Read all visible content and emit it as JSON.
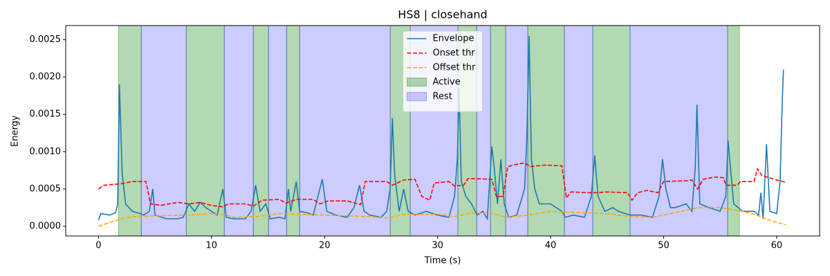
{
  "chart_data": {
    "type": "line",
    "title": "HS8 | closehand",
    "x_label": "Time (s)",
    "y_label": "Energy",
    "xlim": [
      -2.9,
      63.8
    ],
    "xticks": [
      0,
      10,
      20,
      30,
      40,
      50,
      60
    ],
    "ylim": [
      -0.00013,
      0.00269
    ],
    "yticks": [
      {
        "value": 0,
        "label": "0.0000"
      },
      {
        "value": 0.0005,
        "label": "0.0005"
      },
      {
        "value": 0.001,
        "label": "0.0010"
      },
      {
        "value": 0.0015,
        "label": "0.0015"
      },
      {
        "value": 0.002,
        "label": "0.0020"
      },
      {
        "value": 0.0025,
        "label": "0.0025"
      }
    ],
    "legend": "upper center",
    "spans": [
      {
        "name": "Active",
        "color": "#008000",
        "alpha": 0.3,
        "start": [
          1.77,
          7.77,
          13.7,
          16.64,
          25.81,
          31.8,
          34.68,
          37.98,
          43.73,
          55.66
        ],
        "end": [
          3.79,
          11.13,
          15.05,
          17.8,
          27.58,
          33.46,
          36.02,
          41.22,
          47.03,
          56.7
        ]
      },
      {
        "name": "Rest",
        "color": "#0000ff",
        "alpha": 0.2,
        "start": [
          3.79,
          11.13,
          15.05,
          17.8,
          27.58,
          33.46,
          36.02,
          41.22,
          47.03
        ],
        "end": [
          7.77,
          13.7,
          16.64,
          25.81,
          31.8,
          34.68,
          37.98,
          43.73,
          55.66
        ]
      }
    ],
    "series": [
      {
        "name": "Envelope",
        "color": "#1f77b4",
        "dash": "solid",
        "x": [
          0,
          0.2,
          1,
          1.5,
          1.7,
          1.85,
          2.1,
          2.4,
          3,
          3.5,
          4,
          4.5,
          4.8,
          5,
          6,
          7,
          7.5,
          8,
          8.5,
          9,
          9.5,
          10,
          10.5,
          11,
          11.3,
          12,
          13,
          13.5,
          13.9,
          14.3,
          14.8,
          15.2,
          16,
          16.5,
          16.8,
          17,
          17.5,
          17.8,
          18.5,
          19,
          19.8,
          20.2,
          21,
          22,
          22.6,
          23.1,
          23.5,
          24,
          25,
          25.5,
          25.8,
          26,
          26.2,
          26.6,
          27,
          27.4,
          28,
          29,
          30,
          31,
          31.5,
          31.75,
          31.9,
          32.1,
          32.5,
          33,
          33.5,
          34,
          34.4,
          34.8,
          35,
          35.3,
          35.6,
          35.9,
          36.3,
          37,
          37.7,
          37.9,
          38.1,
          38.3,
          38.6,
          39,
          40,
          40.5,
          41,
          41.3,
          42,
          43,
          43.6,
          43.9,
          44.2,
          44.8,
          45.5,
          46,
          47,
          48,
          49,
          49.6,
          49.9,
          50.2,
          50.6,
          51,
          52,
          52.5,
          52.8,
          52.95,
          53.2,
          54,
          55,
          55.5,
          55.7,
          55.9,
          56.2,
          57,
          58,
          58.4,
          58.6,
          58.8,
          59.1,
          59.4,
          60,
          60.3,
          60.5,
          60.6
        ],
        "values": [
          8e-05,
          0.00017,
          0.00015,
          0.00018,
          0.0003,
          0.0019,
          0.0007,
          0.0003,
          0.0002,
          0.00018,
          0.00015,
          0.0002,
          0.0005,
          0.00015,
          0.0001,
          0.0001,
          0.00012,
          0.0003,
          0.0002,
          0.00032,
          0.00025,
          0.0002,
          0.00015,
          0.0005,
          0.00012,
          0.0001,
          0.0001,
          0.0002,
          0.00055,
          0.0002,
          0.0003,
          0.0001,
          0.00012,
          0.0001,
          0.0005,
          0.0002,
          0.0006,
          0.0002,
          0.00018,
          0.00015,
          0.00063,
          0.0002,
          0.00015,
          0.00012,
          0.00025,
          0.00055,
          0.0002,
          0.00015,
          0.00012,
          0.0002,
          0.0005,
          0.00145,
          0.0007,
          0.0002,
          0.0005,
          0.0002,
          0.00015,
          0.0002,
          0.00015,
          0.00012,
          0.0004,
          0.0009,
          0.00185,
          0.0006,
          0.0004,
          0.0003,
          0.00015,
          0.0002,
          0.0001,
          0.00107,
          0.0008,
          0.0003,
          0.0009,
          0.0003,
          0.00012,
          0.00015,
          0.0005,
          0.0012,
          0.00255,
          0.0009,
          0.0005,
          0.0003,
          0.0003,
          0.00025,
          0.0002,
          0.00012,
          0.00015,
          0.00012,
          0.0004,
          0.00095,
          0.0004,
          0.0002,
          0.00025,
          0.0002,
          0.00015,
          0.00015,
          0.00012,
          0.0004,
          0.0009,
          0.0005,
          0.00025,
          0.00025,
          0.0003,
          0.0002,
          0.0008,
          0.00163,
          0.0003,
          0.00025,
          0.0002,
          0.0004,
          0.00115,
          0.0008,
          0.0003,
          0.0002,
          0.0002,
          0.00015,
          0.00045,
          0.0001,
          0.0011,
          0.0002,
          0.00017,
          0.0006,
          0.0017,
          0.0021
        ]
      },
      {
        "name": "Onset thr",
        "color": "#ff0000",
        "dash": "dashed",
        "x": [
          0,
          0.5,
          2,
          3,
          4.2,
          4.6,
          5.5,
          7,
          8,
          9,
          10,
          11,
          11.5,
          13,
          13.7,
          14.5,
          16,
          16.6,
          17.5,
          19,
          19.6,
          20.3,
          22,
          23.2,
          23.6,
          25.5,
          26,
          27,
          28,
          28.6,
          29.3,
          29.7,
          31,
          31.5,
          32.3,
          32.7,
          34.8,
          35.2,
          35.8,
          36.2,
          37,
          37.7,
          38.2,
          39.5,
          41,
          41.4,
          41.8,
          43.5,
          44,
          45,
          46.8,
          47.2,
          47.7,
          48.5,
          49.5,
          50,
          52,
          52.5,
          53,
          53.5,
          54.5,
          55.3,
          55.5,
          56.5,
          56.8,
          58,
          58.3,
          58.7,
          60,
          60.8
        ],
        "values": [
          0.0005,
          0.00055,
          0.00057,
          0.0006,
          0.0006,
          0.0003,
          0.00028,
          0.00032,
          0.0003,
          0.00032,
          0.00028,
          0.00026,
          0.0003,
          0.0003,
          0.00027,
          0.00035,
          0.00036,
          0.00031,
          0.00036,
          0.00036,
          0.0003,
          0.00034,
          0.00034,
          0.00029,
          0.0006,
          0.0006,
          0.00055,
          0.00062,
          0.00063,
          0.0004,
          0.00035,
          0.00058,
          0.0006,
          0.00054,
          0.00055,
          0.00064,
          0.00063,
          0.0004,
          0.0004,
          0.0008,
          0.00083,
          0.00085,
          0.0008,
          0.00082,
          0.00081,
          0.00038,
          0.00046,
          0.00045,
          0.00045,
          0.00046,
          0.00045,
          0.00035,
          0.00045,
          0.00048,
          0.00045,
          0.0006,
          0.00061,
          0.00062,
          0.0005,
          0.00063,
          0.00066,
          0.00065,
          0.00055,
          0.00055,
          0.0006,
          0.0006,
          0.00077,
          0.00068,
          0.00062,
          0.00059
        ]
      },
      {
        "name": "Offset thr",
        "color": "#ffa500",
        "dash": "dashed",
        "x": [
          0,
          1,
          2,
          3,
          5,
          8,
          10,
          11,
          12,
          14,
          16,
          18,
          20,
          24,
          25.7,
          27,
          30,
          31.5,
          33,
          35,
          36,
          38,
          40,
          41.5,
          43,
          45,
          47,
          49,
          51,
          53,
          55,
          57,
          58,
          60,
          60.8
        ],
        "values": [
          0,
          5e-05,
          0.0001,
          0.00013,
          0.00014,
          0.00015,
          0.00017,
          0.00016,
          0.00012,
          0.00013,
          0.00017,
          0.00016,
          0.00015,
          0.00013,
          0.00011,
          0.00016,
          0.00016,
          0.00013,
          0.00018,
          0.00017,
          0.00012,
          0.00015,
          0.0002,
          0.00019,
          0.00018,
          0.00017,
          0.00013,
          0.00012,
          0.00018,
          0.00025,
          0.00025,
          0.0002,
          0.00016,
          5e-05,
          2e-05
        ]
      }
    ]
  }
}
